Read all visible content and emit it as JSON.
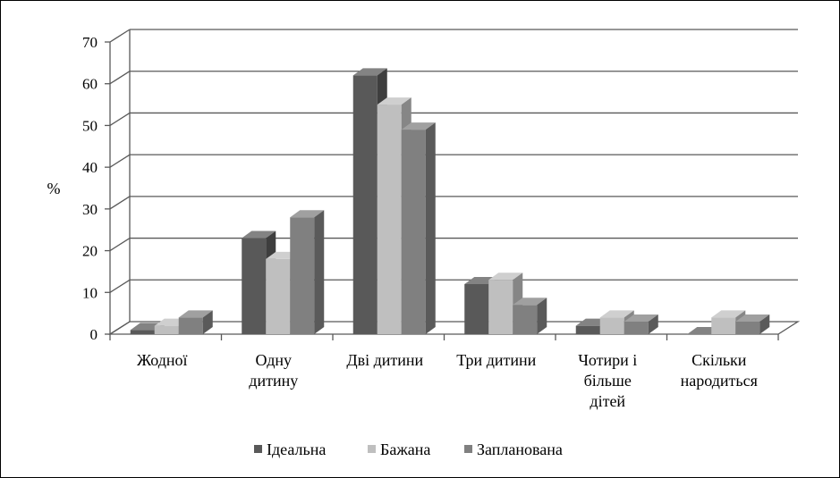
{
  "chart_data": {
    "type": "bar",
    "ylabel": "%",
    "ylim": [
      0,
      70
    ],
    "yticks": [
      "0",
      "10",
      "20",
      "30",
      "40",
      "50",
      "60",
      "70"
    ],
    "grid": true,
    "legend_position": "bottom",
    "categories": [
      [
        "Жодної"
      ],
      [
        "Одну",
        "дитину"
      ],
      [
        "Дві дитини"
      ],
      [
        "Три дитини"
      ],
      [
        "Чотири і",
        "більше",
        "дітей"
      ],
      [
        "Скільки",
        "народиться"
      ]
    ],
    "series": [
      {
        "name": "Ідеальна",
        "color": "#595959",
        "values": [
          1,
          23,
          62,
          12,
          2,
          0
        ]
      },
      {
        "name": "Бажана",
        "color": "#bfbfbf",
        "values": [
          2,
          18,
          55,
          13,
          4,
          4
        ]
      },
      {
        "name": "Запланована",
        "color": "#808080",
        "values": [
          4,
          28,
          49,
          7,
          3,
          3
        ]
      }
    ]
  }
}
